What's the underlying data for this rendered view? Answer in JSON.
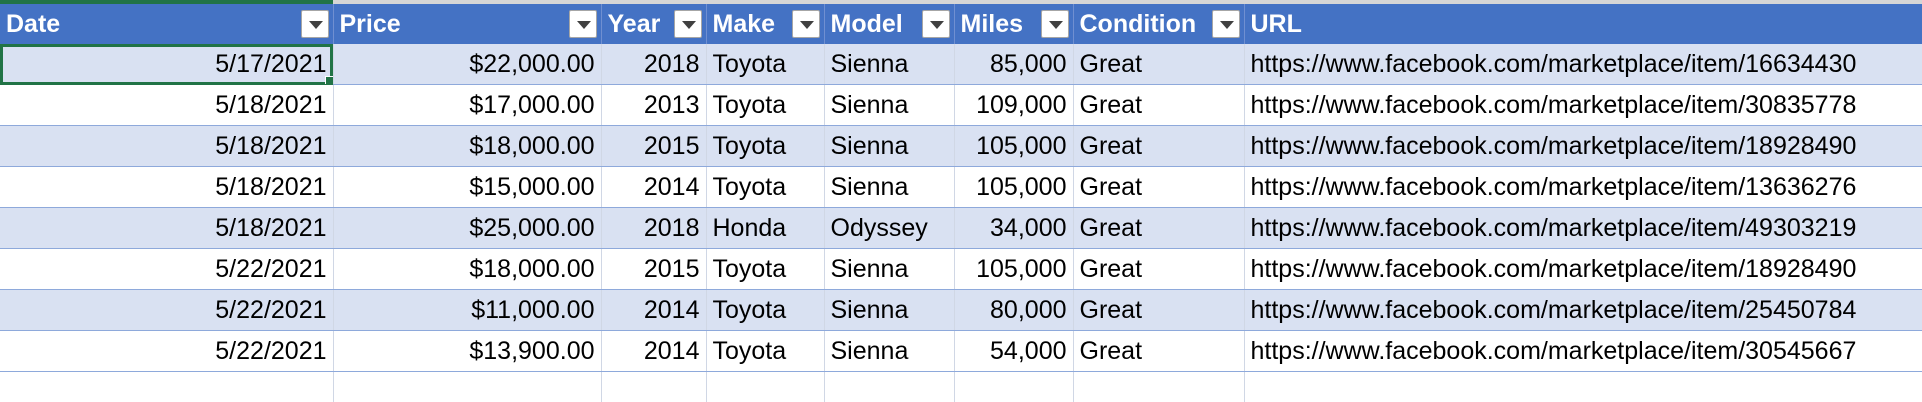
{
  "sheet": {
    "columns": [
      {
        "key": "date",
        "label": "Date",
        "align": "r"
      },
      {
        "key": "price",
        "label": "Price",
        "align": "r"
      },
      {
        "key": "year",
        "label": "Year",
        "align": "r"
      },
      {
        "key": "make",
        "label": "Make",
        "align": "l"
      },
      {
        "key": "model",
        "label": "Model",
        "align": "l"
      },
      {
        "key": "miles",
        "label": "Miles",
        "align": "r"
      },
      {
        "key": "condition",
        "label": "Condition",
        "align": "l"
      },
      {
        "key": "url",
        "label": "URL",
        "align": "l"
      }
    ],
    "rows": [
      {
        "date": "5/17/2021",
        "price": "$22,000.00",
        "year": "2018",
        "make": "Toyota",
        "model": "Sienna",
        "miles": "85,000",
        "condition": "Great",
        "url": "https://www.facebook.com/marketplace/item/16634430"
      },
      {
        "date": "5/18/2021",
        "price": "$17,000.00",
        "year": "2013",
        "make": "Toyota",
        "model": "Sienna",
        "miles": "109,000",
        "condition": "Great",
        "url": "https://www.facebook.com/marketplace/item/30835778"
      },
      {
        "date": "5/18/2021",
        "price": "$18,000.00",
        "year": "2015",
        "make": "Toyota",
        "model": "Sienna",
        "miles": "105,000",
        "condition": "Great",
        "url": "https://www.facebook.com/marketplace/item/18928490"
      },
      {
        "date": "5/18/2021",
        "price": "$15,000.00",
        "year": "2014",
        "make": "Toyota",
        "model": "Sienna",
        "miles": "105,000",
        "condition": "Great",
        "url": "https://www.facebook.com/marketplace/item/13636276"
      },
      {
        "date": "5/18/2021",
        "price": "$25,000.00",
        "year": "2018",
        "make": "Honda",
        "model": "Odyssey",
        "miles": "34,000",
        "condition": "Great",
        "url": "https://www.facebook.com/marketplace/item/49303219"
      },
      {
        "date": "5/22/2021",
        "price": "$18,000.00",
        "year": "2015",
        "make": "Toyota",
        "model": "Sienna",
        "miles": "105,000",
        "condition": "Great",
        "url": "https://www.facebook.com/marketplace/item/18928490"
      },
      {
        "date": "5/22/2021",
        "price": "$11,000.00",
        "year": "2014",
        "make": "Toyota",
        "model": "Sienna",
        "miles": "80,000",
        "condition": "Great",
        "url": "https://www.facebook.com/marketplace/item/25450784"
      },
      {
        "date": "5/22/2021",
        "price": "$13,900.00",
        "year": "2014",
        "make": "Toyota",
        "model": "Sienna",
        "miles": "54,000",
        "condition": "Great",
        "url": "https://www.facebook.com/marketplace/item/30545667"
      }
    ],
    "filter_icon": "filter-dropdown-icon",
    "colors": {
      "header_bg": "#4472c4",
      "band_bg": "#d9e1f2",
      "selection": "#217346"
    }
  }
}
